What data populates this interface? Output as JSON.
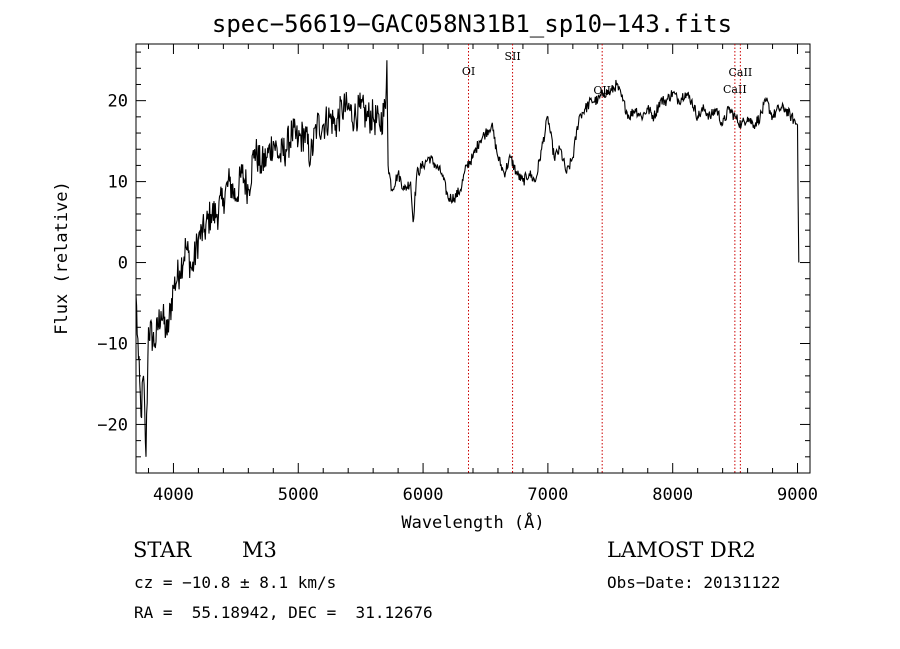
{
  "chart_data": {
    "type": "line",
    "title": "spec−56619−GAC058N31B1_sp10−143.fits",
    "xlabel": "Wavelength (Å)",
    "ylabel": "Flux (relative)",
    "xlim": [
      3700,
      9100
    ],
    "ylim": [
      -26,
      27
    ],
    "x_ticks": [
      4000,
      5000,
      6000,
      7000,
      8000,
      9000
    ],
    "y_ticks": [
      -20,
      -10,
      0,
      10,
      20
    ],
    "y_tick_labels": [
      "−20",
      "−10",
      "0",
      "10",
      "20"
    ],
    "grid": false,
    "line_color": "#000000",
    "marker_color": "#cc0000",
    "series": [
      {
        "x": [
          3700,
          3720,
          3740,
          3760,
          3780,
          3800,
          3850,
          3900,
          3950,
          4000,
          4050,
          4100,
          4150,
          4200,
          4250,
          4300,
          4350,
          4400,
          4450,
          4500,
          4550,
          4600,
          4650,
          4700,
          4750,
          4800,
          4850,
          4900,
          4950,
          5000,
          5050,
          5100,
          5150,
          5200,
          5250,
          5300,
          5350,
          5400,
          5450,
          5500,
          5550,
          5600,
          5650,
          5700,
          5710,
          5720,
          5750,
          5800,
          5850,
          5900,
          5920,
          5950,
          6000,
          6050,
          6100,
          6150,
          6200,
          6250,
          6300,
          6350,
          6400,
          6450,
          6500,
          6550,
          6600,
          6650,
          6700,
          6750,
          6800,
          6850,
          6900,
          6950,
          7000,
          7050,
          7100,
          7150,
          7200,
          7250,
          7300,
          7350,
          7400,
          7450,
          7500,
          7550,
          7600,
          7650,
          7700,
          7750,
          7800,
          7850,
          7900,
          7950,
          8000,
          8050,
          8100,
          8150,
          8200,
          8250,
          8300,
          8350,
          8400,
          8450,
          8500,
          8550,
          8600,
          8650,
          8700,
          8750,
          8800,
          8850,
          8900,
          8950,
          9000,
          9010
        ],
        "y": [
          -4,
          -12,
          -19,
          -14,
          -24,
          -8,
          -10,
          -6,
          -9,
          -3,
          -1,
          2,
          -1,
          3,
          4,
          6,
          6,
          8,
          10,
          8,
          11,
          9,
          14,
          12,
          13,
          15,
          13,
          14,
          16,
          15,
          16,
          13,
          17,
          17,
          18,
          17,
          19,
          19,
          18,
          19,
          18,
          18,
          17,
          19,
          25,
          12,
          9,
          11,
          9,
          10,
          5,
          11,
          12,
          13,
          12,
          11,
          8,
          8,
          9,
          12,
          13,
          15,
          16,
          17,
          13,
          11,
          13,
          11,
          10,
          11,
          10,
          14,
          18,
          13,
          14,
          11,
          13,
          18,
          19,
          20,
          20,
          21,
          21,
          22,
          20,
          18,
          19,
          18,
          19,
          18,
          20,
          20,
          21,
          20,
          21,
          20,
          18,
          19,
          18,
          19,
          17,
          19,
          18,
          17,
          18,
          17,
          18,
          20,
          18,
          19,
          19,
          18,
          17,
          0
        ]
      }
    ],
    "markers": [
      {
        "name": "OI",
        "x": 6364
      },
      {
        "name": "SII",
        "x": 6717
      },
      {
        "name": "OII",
        "x": 7435
      },
      {
        "name": "CaII",
        "x": 8498
      },
      {
        "name": "CaII",
        "x": 8542
      }
    ]
  },
  "info": {
    "class_label": "STAR",
    "subclass_label": "M3",
    "cz_text": "cz = −10.8 ± 8.1 km/s",
    "radec_text": "RA =  55.18942, DEC =  31.12676",
    "survey_label": "LAMOST DR2",
    "obs_date_text": "Obs−Date: 20131122"
  }
}
